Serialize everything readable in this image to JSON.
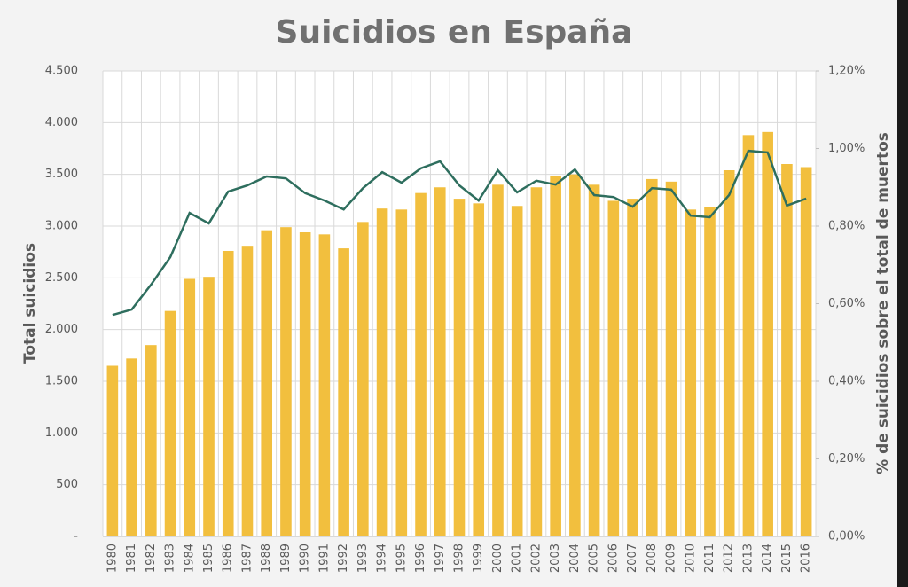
{
  "chart_data": {
    "type": "bar",
    "title": "Suicidios en España",
    "y_label": "Total suicidios",
    "y2_label": "% de suicidios sobre el total de muertos",
    "categories": [
      "1980",
      "1981",
      "1982",
      "1983",
      "1984",
      "1985",
      "1986",
      "1987",
      "1988",
      "1989",
      "1990",
      "1991",
      "1992",
      "1993",
      "1994",
      "1995",
      "1996",
      "1997",
      "1998",
      "1999",
      "2000",
      "2001",
      "2002",
      "2003",
      "2004",
      "2005",
      "2006",
      "2007",
      "2008",
      "2009",
      "2010",
      "2011",
      "2012",
      "2013",
      "2014",
      "2015",
      "2016"
    ],
    "series": [
      {
        "color": "#f2bf3e",
        "values": [
          1650,
          1720,
          1850,
          2180,
          2490,
          2510,
          2760,
          2810,
          2960,
          2990,
          2940,
          2920,
          2785,
          3040,
          3170,
          3160,
          3320,
          3375,
          3265,
          3220,
          3400,
          3195,
          3375,
          3480,
          3500,
          3400,
          3245,
          3265,
          3455,
          3430,
          3160,
          3185,
          3540,
          3880,
          3910,
          3600,
          3570
        ]
      },
      {
        "type": "line",
        "axis": "y2",
        "color": "#2e6e5e",
        "values": [
          0.571,
          0.585,
          0.649,
          0.72,
          0.834,
          0.807,
          0.889,
          0.905,
          0.928,
          0.923,
          0.885,
          0.866,
          0.843,
          0.898,
          0.939,
          0.912,
          0.949,
          0.967,
          0.905,
          0.866,
          0.944,
          0.887,
          0.917,
          0.907,
          0.946,
          0.88,
          0.875,
          0.85,
          0.898,
          0.894,
          0.827,
          0.823,
          0.88,
          0.994,
          0.99,
          0.853,
          0.871
        ]
      }
    ],
    "ylim": [
      0,
      4500
    ],
    "yticks": [
      {
        "value": 0,
        "label": "-"
      },
      {
        "value": 500,
        "label": "500"
      },
      {
        "value": 1000,
        "label": "1.000"
      },
      {
        "value": 1500,
        "label": "1.500"
      },
      {
        "value": 2000,
        "label": "2.000"
      },
      {
        "value": 2500,
        "label": "2.500"
      },
      {
        "value": 3000,
        "label": "3.000"
      },
      {
        "value": 3500,
        "label": "3.500"
      },
      {
        "value": 4000,
        "label": "4.000"
      },
      {
        "value": 4500,
        "label": "4.500"
      }
    ],
    "y2lim": [
      0,
      1.2
    ],
    "y2ticks": [
      {
        "value": 0,
        "label": "0,00%"
      },
      {
        "value": 0.2,
        "label": "0,20%"
      },
      {
        "value": 0.4,
        "label": "0,40%"
      },
      {
        "value": 0.6,
        "label": "0,60%"
      },
      {
        "value": 0.8,
        "label": "0,80%"
      },
      {
        "value": 1.0,
        "label": "1,00%"
      },
      {
        "value": 1.2,
        "label": "1,20%"
      }
    ],
    "grid": true
  }
}
